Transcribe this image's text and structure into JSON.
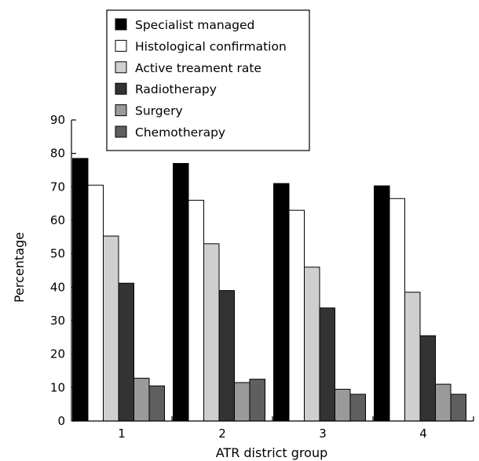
{
  "chart_data": {
    "type": "bar",
    "xlabel": "ATR district group",
    "ylabel": "Percentage",
    "ylim": [
      0,
      90
    ],
    "yticks": [
      0,
      10,
      20,
      30,
      40,
      50,
      60,
      70,
      80,
      90
    ],
    "categories": [
      "1",
      "2",
      "3",
      "4"
    ],
    "legend_position": "top-center",
    "grid": false,
    "series": [
      {
        "name": "Specialist managed",
        "color": "#000000",
        "values": [
          78.5,
          77,
          71,
          70.3
        ]
      },
      {
        "name": "Histological confirmation",
        "color": "#ffffff",
        "values": [
          70.5,
          66,
          63,
          66.5
        ]
      },
      {
        "name": "Active treament rate",
        "color": "#cfcfcf",
        "values": [
          55.3,
          53,
          46,
          38.5
        ]
      },
      {
        "name": "Radiotherapy",
        "color": "#333333",
        "values": [
          41.2,
          39,
          33.8,
          25.5
        ]
      },
      {
        "name": "Surgery",
        "color": "#9a9a9a",
        "values": [
          12.8,
          11.5,
          9.5,
          11
        ]
      },
      {
        "name": "Chemotherapy",
        "color": "#5f5f5f",
        "values": [
          10.5,
          12.5,
          8,
          8
        ]
      }
    ]
  }
}
